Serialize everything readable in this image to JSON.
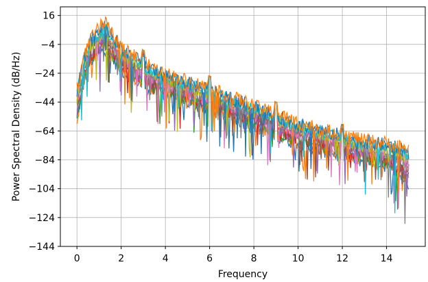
{
  "chart_data": {
    "type": "line",
    "title": "",
    "xlabel": "Frequency",
    "ylabel": "Power Spectral Density (dB/Hz)",
    "xlim": [
      -0.75,
      15.75
    ],
    "ylim": [
      -144,
      22
    ],
    "xticks": [
      0,
      2,
      4,
      6,
      8,
      10,
      12,
      14
    ],
    "yticks": [
      16,
      -4,
      -24,
      -44,
      -64,
      -84,
      -104,
      -124,
      -144
    ],
    "grid": true,
    "legend": "none",
    "colors": [
      "#1f77b4",
      "#ff7f0e",
      "#2ca02c",
      "#d62728",
      "#9467bd",
      "#8c564b",
      "#e377c2",
      "#7f7f7f",
      "#bcbd22",
      "#17becf"
    ],
    "envelope": {
      "x": [
        0,
        0.3,
        0.6,
        1.0,
        1.2,
        1.6,
        2.0,
        3,
        4,
        5,
        6,
        7,
        8,
        9,
        10,
        11,
        12,
        13,
        14,
        15
      ],
      "upper": [
        -28,
        -10,
        4,
        12,
        17,
        8,
        0,
        -12,
        -20,
        -25,
        -30,
        -36,
        -42,
        -48,
        -54,
        -58,
        -62,
        -66,
        -68,
        -70
      ],
      "lower": [
        -92,
        -55,
        -40,
        -38,
        -32,
        -40,
        -48,
        -58,
        -62,
        -68,
        -72,
        -78,
        -84,
        -90,
        -96,
        -100,
        -104,
        -108,
        -112,
        -136
      ]
    },
    "peaks": [
      {
        "x": 3.0,
        "y": -6
      },
      {
        "x": 6.0,
        "y": -20
      },
      {
        "x": 9.0,
        "y": -38
      },
      {
        "x": 12.0,
        "y": -58
      }
    ],
    "series_count": 12
  }
}
